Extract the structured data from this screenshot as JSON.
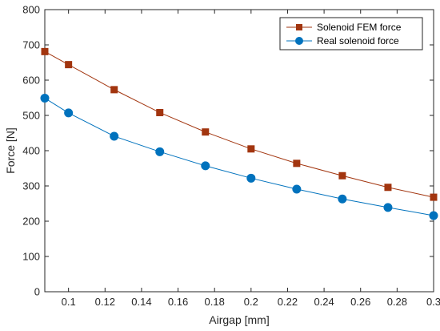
{
  "chart_data": {
    "type": "line",
    "title": "",
    "xlabel": "Airgap [mm]",
    "ylabel": "Force [N]",
    "xlim": [
      0.087,
      0.3
    ],
    "ylim": [
      0,
      800
    ],
    "xticks": [
      0.1,
      0.12,
      0.14,
      0.16,
      0.18,
      0.2,
      0.22,
      0.24,
      0.26,
      0.28,
      0.3
    ],
    "xtick_labels": [
      "0.1",
      "0.12",
      "0.14",
      "0.16",
      "0.18",
      "0.2",
      "0.22",
      "0.24",
      "0.26",
      "0.28",
      "0.3"
    ],
    "yticks": [
      0,
      100,
      200,
      300,
      400,
      500,
      600,
      700,
      800
    ],
    "ytick_labels": [
      "0",
      "100",
      "200",
      "300",
      "400",
      "500",
      "600",
      "700",
      "800"
    ],
    "grid": false,
    "legend_position": "top-right",
    "x": [
      0.087,
      0.1,
      0.125,
      0.15,
      0.175,
      0.2,
      0.225,
      0.25,
      0.275,
      0.3
    ],
    "series": [
      {
        "name": "Solenoid FEM force",
        "color": "#a2350f",
        "marker": "square",
        "values": [
          681,
          644,
          573,
          508,
          453,
          405,
          364,
          329,
          296,
          268
        ]
      },
      {
        "name": "Real solenoid force",
        "color": "#0072bd",
        "marker": "circle",
        "values": [
          549,
          507,
          441,
          397,
          357,
          322,
          291,
          263,
          239,
          216
        ]
      }
    ]
  }
}
